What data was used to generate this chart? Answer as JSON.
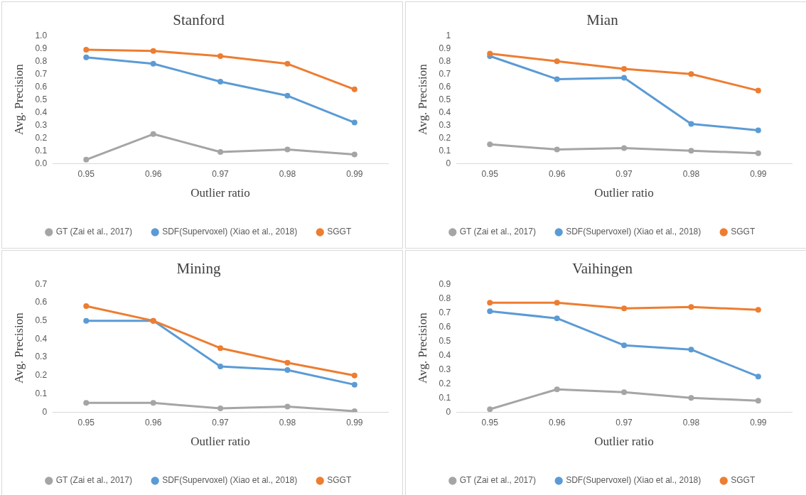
{
  "chart_data": [
    {
      "type": "line",
      "title": "Stanford",
      "xlabel": "Outlier ratio",
      "ylabel": "Avg. Precision",
      "categories": [
        "0.95",
        "0.96",
        "0.97",
        "0.98",
        "0.99"
      ],
      "ylim": [
        0,
        1
      ],
      "yticks": [
        {
          "value": 0,
          "label": "0.0"
        },
        0.1,
        0.2,
        0.3,
        0.4,
        0.5,
        0.6,
        0.7,
        0.8,
        0.9,
        {
          "value": 1,
          "label": "1.0"
        }
      ],
      "grid": false,
      "legend": "bottom",
      "marker": "circle",
      "line_style": "solid",
      "series": [
        {
          "name": "GT (Zai et al., 2017)",
          "color": "#a5a5a5",
          "values": [
            0.03,
            0.23,
            0.09,
            0.11,
            0.07
          ]
        },
        {
          "name": "SDF(Supervoxel) (Xiao et al., 2018)",
          "color": "#5b9bd5",
          "values": [
            0.83,
            0.78,
            0.64,
            0.53,
            0.32
          ]
        },
        {
          "name": "SGGT",
          "color": "#ed7d31",
          "values": [
            0.89,
            0.88,
            0.84,
            0.78,
            0.58
          ]
        }
      ]
    },
    {
      "type": "line",
      "title": "Mian",
      "xlabel": "Outlier ratio",
      "ylabel": "Avg. Precision",
      "categories": [
        "0.95",
        "0.96",
        "0.97",
        "0.98",
        "0.99"
      ],
      "ylim": [
        0,
        1
      ],
      "yticks": [
        0,
        0.1,
        0.2,
        0.3,
        0.4,
        0.5,
        0.6,
        0.7,
        0.8,
        0.9,
        1
      ],
      "grid": false,
      "legend": "bottom",
      "marker": "circle",
      "line_style": "solid",
      "series": [
        {
          "name": "GT (Zai et al., 2017)",
          "color": "#a5a5a5",
          "values": [
            0.15,
            0.11,
            0.12,
            0.1,
            0.08
          ]
        },
        {
          "name": "SDF(Supervoxel) (Xiao et al., 2018)",
          "color": "#5b9bd5",
          "values": [
            0.84,
            0.66,
            0.67,
            0.31,
            0.26
          ]
        },
        {
          "name": "SGGT",
          "color": "#ed7d31",
          "values": [
            0.86,
            0.8,
            0.74,
            0.7,
            0.57
          ]
        }
      ]
    },
    {
      "type": "line",
      "title": "Mining",
      "xlabel": "Outlier ratio",
      "ylabel": "Avg. Precision",
      "categories": [
        "0.95",
        "0.96",
        "0.97",
        "0.98",
        "0.99"
      ],
      "ylim": [
        0,
        0.7
      ],
      "yticks": [
        0,
        0.1,
        0.2,
        0.3,
        0.4,
        0.5,
        0.6,
        0.7
      ],
      "grid": false,
      "legend": "bottom",
      "marker": "circle",
      "line_style": "solid",
      "series": [
        {
          "name": "GT (Zai et al., 2017)",
          "color": "#a5a5a5",
          "values": [
            0.05,
            0.05,
            0.02,
            0.03,
            0.005
          ]
        },
        {
          "name": "SDF(Supervoxel) (Xiao et al., 2018)",
          "color": "#5b9bd5",
          "values": [
            0.5,
            0.5,
            0.25,
            0.23,
            0.15
          ]
        },
        {
          "name": "SGGT",
          "color": "#ed7d31",
          "values": [
            0.58,
            0.5,
            0.35,
            0.27,
            0.2
          ]
        }
      ]
    },
    {
      "type": "line",
      "title": "Vaihingen",
      "xlabel": "Outlier ratio",
      "ylabel": "Avg. Precision",
      "categories": [
        "0.95",
        "0.96",
        "0.97",
        "0.98",
        "0.99"
      ],
      "ylim": [
        0,
        0.9
      ],
      "yticks": [
        0,
        0.1,
        0.2,
        0.3,
        0.4,
        0.5,
        0.6,
        0.7,
        0.8,
        0.9
      ],
      "grid": false,
      "legend": "bottom",
      "marker": "circle",
      "line_style": "solid",
      "series": [
        {
          "name": "GT (Zai et al., 2017)",
          "color": "#a5a5a5",
          "values": [
            0.02,
            0.16,
            0.14,
            0.1,
            0.08
          ]
        },
        {
          "name": "SDF(Supervoxel) (Xiao et al., 2018)",
          "color": "#5b9bd5",
          "values": [
            0.71,
            0.66,
            0.47,
            0.44,
            0.25
          ]
        },
        {
          "name": "SGGT",
          "color": "#ed7d31",
          "values": [
            0.77,
            0.77,
            0.73,
            0.74,
            0.72
          ]
        }
      ]
    }
  ]
}
